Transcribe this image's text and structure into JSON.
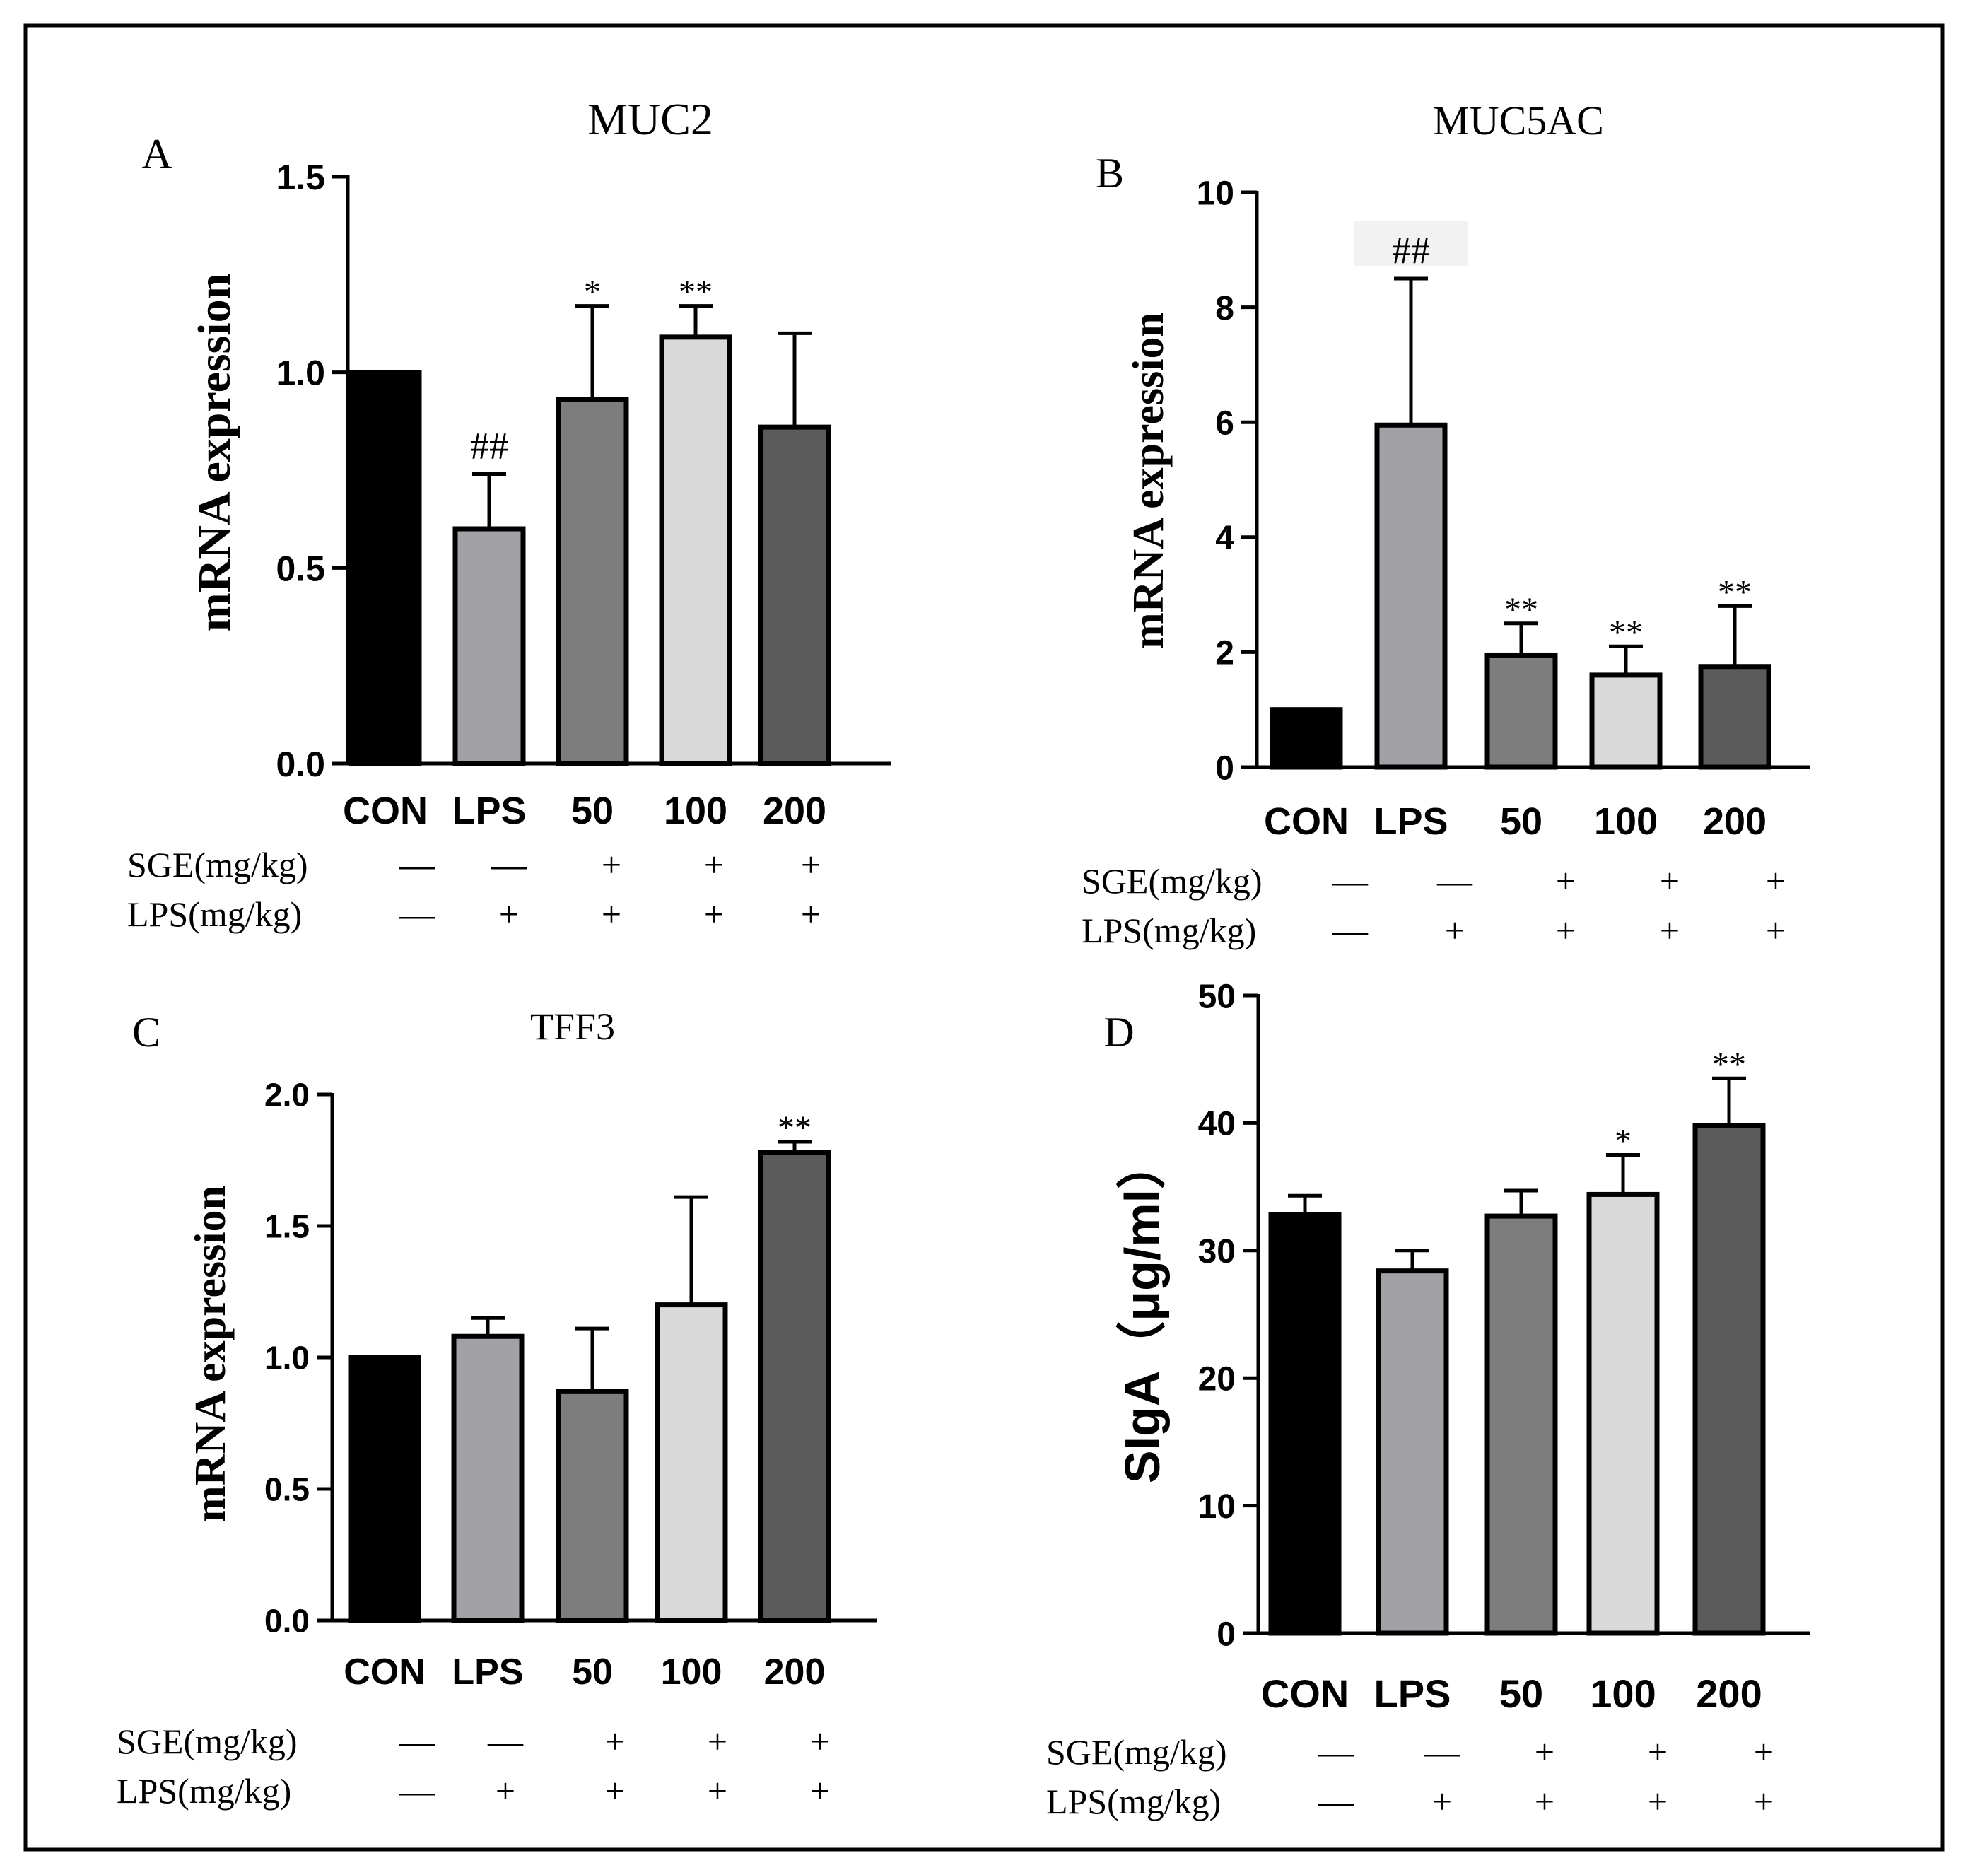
{
  "figure": {
    "treatment_labels": {
      "sge": "SGE(mg/kg)",
      "lps": "LPS(mg/kg)"
    },
    "treatment_signs": {
      "sge": [
        "—",
        "—",
        "+",
        "+",
        "+"
      ],
      "lps": [
        "—",
        "+",
        "+",
        "+",
        "+"
      ]
    },
    "bar_colors": [
      "#000000",
      "#a2a2a6",
      "#7d7d7d",
      "#d9d9d9",
      "#5b5b5b"
    ]
  },
  "chart_data": [
    {
      "panel": "A",
      "type": "bar",
      "title": "MUC2",
      "ylabel": "mRNA expression",
      "ylim": [
        0,
        1.5
      ],
      "yticks": [
        "0.0",
        "0.5",
        "1.0",
        "1.5"
      ],
      "categories": [
        "CON",
        "LPS",
        "50",
        "100",
        "200"
      ],
      "values": [
        1.0,
        0.6,
        0.93,
        1.09,
        0.86
      ],
      "errors": [
        0,
        0.14,
        0.24,
        0.08,
        0.24
      ],
      "annotations": [
        "",
        "##",
        "*",
        "**",
        ""
      ]
    },
    {
      "panel": "B",
      "type": "bar",
      "title": "MUC5AC",
      "ylabel": "mRNA expression",
      "ylim": [
        0,
        10
      ],
      "yticks": [
        "0",
        "2",
        "4",
        "6",
        "8",
        "10"
      ],
      "categories": [
        "CON",
        "LPS",
        "50",
        "100",
        "200"
      ],
      "values": [
        1.0,
        5.95,
        1.95,
        1.6,
        1.75
      ],
      "errors": [
        0,
        2.55,
        0.55,
        0.5,
        1.05
      ],
      "annotations": [
        "",
        "##",
        "**",
        "**",
        "**"
      ]
    },
    {
      "panel": "C",
      "type": "bar",
      "title": "TFF3",
      "ylabel": "mRNA expression",
      "ylim": [
        0,
        2.0
      ],
      "yticks": [
        "0.0",
        "0.5",
        "1.0",
        "1.5",
        "2.0"
      ],
      "categories": [
        "CON",
        "LPS",
        "50",
        "100",
        "200"
      ],
      "values": [
        1.0,
        1.08,
        0.87,
        1.2,
        1.78
      ],
      "errors": [
        0,
        0.07,
        0.24,
        0.41,
        0.04
      ],
      "annotations": [
        "",
        "",
        "",
        "",
        "**"
      ]
    },
    {
      "panel": "D",
      "type": "bar",
      "title": "",
      "ylabel": "SIgA（μg/ml）",
      "ylim": [
        0,
        50
      ],
      "yticks": [
        "0",
        "10",
        "20",
        "30",
        "40",
        "50"
      ],
      "categories": [
        "CON",
        "LPS",
        "50",
        "100",
        "200"
      ],
      "values": [
        32.8,
        28.4,
        32.7,
        34.4,
        39.8
      ],
      "errors": [
        1.5,
        1.6,
        2.0,
        3.1,
        3.7
      ],
      "annotations": [
        "",
        "",
        "",
        "*",
        "**"
      ]
    }
  ]
}
